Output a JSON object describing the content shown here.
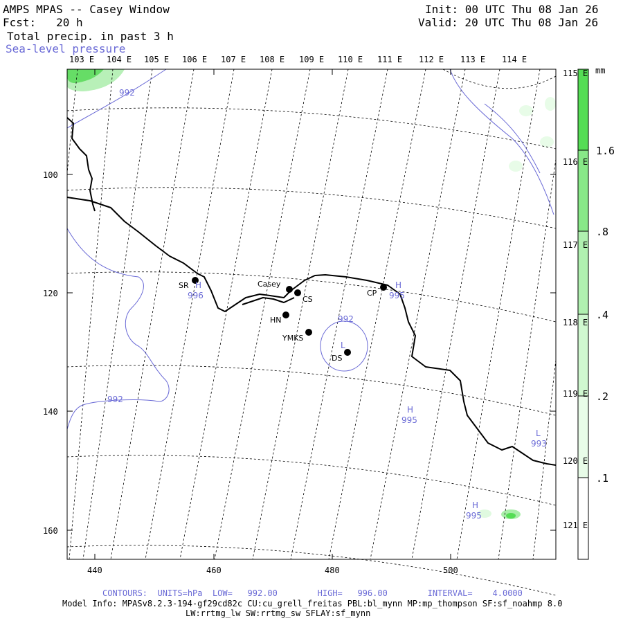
{
  "header": {
    "title": "AMPS MPAS -- Casey Window",
    "forecast": "Fcst:   20 h",
    "field": "Total precip. in past 3 h",
    "overlay": "Sea-level pressure",
    "init": "Init: 00 UTC Thu 08 Jan 26",
    "valid": "Valid: 20 UTC Thu 08 Jan 26"
  },
  "top_longitude_labels": [
    "103 E",
    "104 E",
    "105 E",
    "106 E",
    "107 E",
    "108 E",
    "109 E",
    "110 E",
    "111 E",
    "112 E",
    "113 E",
    "114 E"
  ],
  "right_longitude_labels": [
    "115 E",
    "116 E",
    "117 E",
    "118 E",
    "119 E",
    "120 E",
    "121 E"
  ],
  "x_ticks": [
    "440",
    "460",
    "480",
    "500"
  ],
  "y_ticks": [
    "100",
    "120",
    "140",
    "160"
  ],
  "stations": [
    {
      "id": "SR",
      "label": "SR"
    },
    {
      "id": "Casey",
      "label": "Casey"
    },
    {
      "id": "CS",
      "label": "CS"
    },
    {
      "id": "HN",
      "label": "HN"
    },
    {
      "id": "YMKS",
      "label": "YMKS"
    },
    {
      "id": "DS",
      "label": "DS"
    },
    {
      "id": "CP",
      "label": "CP"
    }
  ],
  "pressure_labels": [
    "992",
    "992",
    "992",
    "996",
    "995",
    "995",
    "993",
    "995"
  ],
  "pressure_centers": [
    "H",
    "H",
    "L",
    "H",
    "L",
    "H"
  ],
  "colorbar": {
    "unit": "mm",
    "labels": [
      "1.6",
      ".8",
      ".4",
      ".2",
      ".1"
    ],
    "colors": [
      "#55dd55",
      "#88e888",
      "#b0f0b0",
      "#d0f8d0",
      "#e8fce8",
      "#ffffff"
    ]
  },
  "footer": {
    "contours": "CONTOURS:  UNITS=hPa  LOW=   992.00        HIGH=   996.00        INTERVAL=    4.0000",
    "model_info": "Model Info: MPASv8.2.3-194-gf29cd82c CU:cu_grell_freitas PBL:bl_mynn MP:mp_thompson SF:sf_noahmp 8.0",
    "model_info2": "LW:rrtmg_lw SW:rrtmg_sw SFLAY:sf_mynn"
  },
  "colors": {
    "contour": "#6a6ad6",
    "coast": "#000000",
    "precip": "#55dd55"
  }
}
